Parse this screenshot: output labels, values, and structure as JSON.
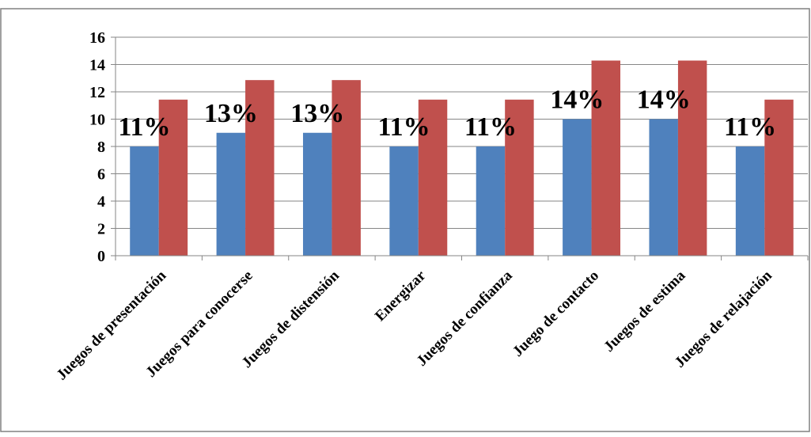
{
  "chart_data": {
    "type": "bar",
    "categories": [
      "Juegos de presentación",
      "Juegos para conocerse",
      "Juegos de distensión",
      "Energizar",
      "Juegos de confianza",
      "Juego de contacto",
      "Juegos de estima",
      "Juegos de relajación"
    ],
    "series": [
      {
        "values": [
          8,
          9,
          9,
          8,
          8,
          10,
          10,
          8
        ],
        "color": "#4f81bd"
      },
      {
        "values": [
          11.43,
          12.86,
          12.86,
          11.43,
          11.43,
          14.29,
          14.29,
          11.43
        ],
        "color": "#c0504d"
      }
    ],
    "data_labels": [
      "11%",
      "13%",
      "13%",
      "11%",
      "11%",
      "14%",
      "14%",
      "11%"
    ],
    "yticks": [
      "0",
      "2",
      "4",
      "6",
      "8",
      "10",
      "12",
      "14",
      "16"
    ],
    "ylim": [
      0,
      16
    ],
    "grid": true,
    "legend": "none"
  }
}
